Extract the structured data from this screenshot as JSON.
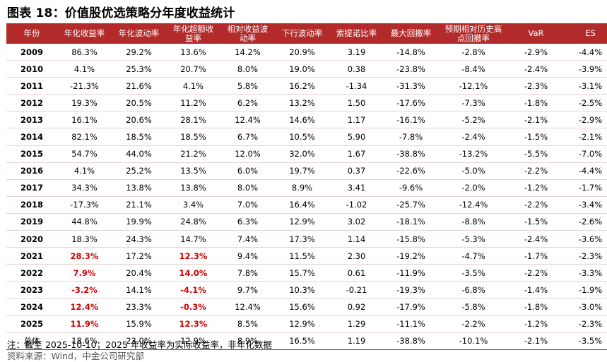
{
  "title": "图表 18：价值股优选策略分年度收益统计",
  "table": {
    "headers": [
      "年份",
      "年化收益率",
      "年化波动率",
      "年化超额收\n益率",
      "相对收益波\n动率",
      "下行波动率",
      "索提诺比率",
      "最大回撤率",
      "预期相对历史高\n点回撤率",
      "VaR",
      "ES"
    ],
    "rows": [
      {
        "year": "2009",
        "cells": [
          "86.3%",
          "29.2%",
          "13.6%",
          "14.2%",
          "20.9%",
          "3.19",
          "-14.8%",
          "-2.8%",
          "-2.9%",
          "-4.4%"
        ],
        "highlight": []
      },
      {
        "year": "2010",
        "cells": [
          "4.1%",
          "25.3%",
          "20.7%",
          "8.0%",
          "19.0%",
          "0.38",
          "-23.8%",
          "-8.4%",
          "-2.4%",
          "-3.9%"
        ],
        "highlight": []
      },
      {
        "year": "2011",
        "cells": [
          "-21.3%",
          "21.6%",
          "4.1%",
          "5.8%",
          "16.2%",
          "-1.34",
          "-31.3%",
          "-12.1%",
          "-2.3%",
          "-3.1%"
        ],
        "highlight": []
      },
      {
        "year": "2012",
        "cells": [
          "19.3%",
          "20.5%",
          "11.2%",
          "6.2%",
          "13.2%",
          "1.50",
          "-17.6%",
          "-7.3%",
          "-1.8%",
          "-2.5%"
        ],
        "highlight": []
      },
      {
        "year": "2013",
        "cells": [
          "16.1%",
          "20.6%",
          "28.1%",
          "12.4%",
          "14.6%",
          "1.17",
          "-16.1%",
          "-5.2%",
          "-2.1%",
          "-2.9%"
        ],
        "highlight": []
      },
      {
        "year": "2014",
        "cells": [
          "82.1%",
          "18.5%",
          "18.5%",
          "6.7%",
          "10.5%",
          "5.90",
          "-7.8%",
          "-2.4%",
          "-1.5%",
          "-2.1%"
        ],
        "highlight": []
      },
      {
        "year": "2015",
        "cells": [
          "54.7%",
          "44.0%",
          "21.2%",
          "12.0%",
          "32.0%",
          "1.67",
          "-38.8%",
          "-13.2%",
          "-5.5%",
          "-7.0%"
        ],
        "highlight": []
      },
      {
        "year": "2016",
        "cells": [
          "4.1%",
          "25.2%",
          "13.5%",
          "6.0%",
          "19.7%",
          "0.37",
          "-22.6%",
          "-5.0%",
          "-2.2%",
          "-4.4%"
        ],
        "highlight": []
      },
      {
        "year": "2017",
        "cells": [
          "34.3%",
          "13.8%",
          "13.8%",
          "8.0%",
          "8.9%",
          "3.41",
          "-9.6%",
          "-2.0%",
          "-1.2%",
          "-1.7%"
        ],
        "highlight": []
      },
      {
        "year": "2018",
        "cells": [
          "-17.3%",
          "21.1%",
          "3.4%",
          "7.0%",
          "16.4%",
          "-1.02",
          "-25.7%",
          "-12.4%",
          "-2.2%",
          "-3.4%"
        ],
        "highlight": []
      },
      {
        "year": "2019",
        "cells": [
          "44.8%",
          "19.9%",
          "24.8%",
          "6.3%",
          "12.9%",
          "3.02",
          "-18.1%",
          "-8.8%",
          "-1.5%",
          "-2.6%"
        ],
        "highlight": []
      },
      {
        "year": "2020",
        "cells": [
          "18.3%",
          "24.3%",
          "14.7%",
          "7.4%",
          "17.3%",
          "1.14",
          "-15.8%",
          "-5.3%",
          "-2.4%",
          "-3.6%"
        ],
        "highlight": []
      },
      {
        "year": "2021",
        "cells": [
          "28.3%",
          "17.2%",
          "12.3%",
          "9.4%",
          "11.5%",
          "2.30",
          "-19.2%",
          "-4.7%",
          "-1.7%",
          "-2.3%"
        ],
        "highlight": [
          0,
          2
        ]
      },
      {
        "year": "2022",
        "cells": [
          "7.9%",
          "20.4%",
          "14.0%",
          "7.8%",
          "15.7%",
          "0.61",
          "-11.9%",
          "-3.5%",
          "-2.2%",
          "-3.3%"
        ],
        "highlight": [
          0,
          2
        ]
      },
      {
        "year": "2023",
        "cells": [
          "-3.2%",
          "14.1%",
          "-4.1%",
          "9.7%",
          "10.3%",
          "-0.21",
          "-19.3%",
          "-6.8%",
          "-1.4%",
          "-1.9%"
        ],
        "highlight": [
          0,
          2
        ]
      },
      {
        "year": "2024",
        "cells": [
          "12.4%",
          "23.3%",
          "-0.3%",
          "12.4%",
          "15.6%",
          "0.92",
          "-17.9%",
          "-5.8%",
          "-1.8%",
          "-3.0%"
        ],
        "highlight": [
          0,
          2
        ]
      },
      {
        "year": "2025",
        "cells": [
          "11.9%",
          "15.9%",
          "12.3%",
          "8.5%",
          "12.9%",
          "1.29",
          "-11.1%",
          "-2.2%",
          "-1.2%",
          "-2.3%"
        ],
        "highlight": [
          0,
          2
        ]
      },
      {
        "year": "总体",
        "cells": [
          "18.6%",
          "23.0%",
          "12.9%",
          "8.9%",
          "16.5%",
          "1.19",
          "-38.8%",
          "-10.1%",
          "-2.1%",
          "-3.5%"
        ],
        "highlight": [],
        "total": true
      }
    ]
  },
  "note": "注：截至 2025-10-10；2025 年收益率为实际收益率，非年化数据",
  "source": "资料来源：Wind，中金公司研究部",
  "colors": {
    "header_bg": "#b32a2a",
    "highlight_text": "#d40000"
  }
}
